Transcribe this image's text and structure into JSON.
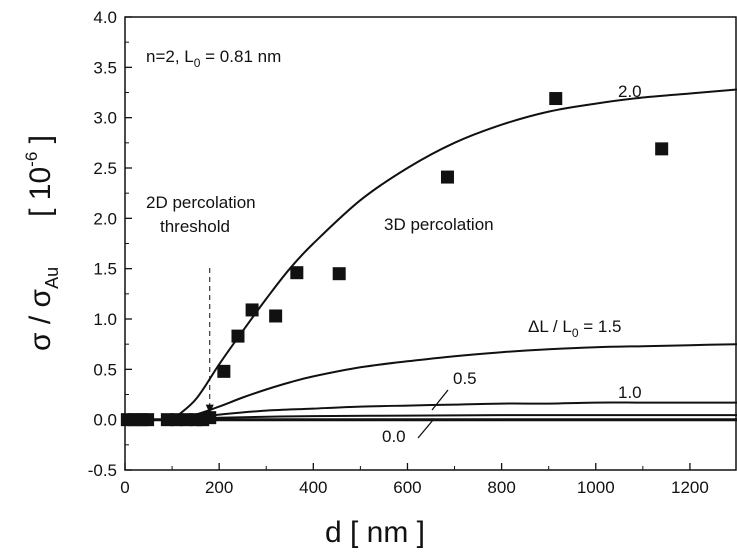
{
  "chart_data": {
    "type": "scatter",
    "xlabel": "d  [ nm ]",
    "ylabel": {
      "sigma": "σ / σ",
      "sub": "Au",
      "bracket_open": "[ 10",
      "exp": "-6",
      "bracket_close": " ]"
    },
    "xlim": [
      0,
      1300
    ],
    "ylim": [
      -0.5,
      4.0
    ],
    "xticks": [
      0,
      200,
      400,
      600,
      800,
      1000,
      1200
    ],
    "xtick_labels": [
      "0",
      "200",
      "400",
      "600",
      "800",
      "1000",
      "1200"
    ],
    "yticks": [
      -0.5,
      0.0,
      0.5,
      1.0,
      1.5,
      2.0,
      2.5,
      3.0,
      3.5,
      4.0
    ],
    "ytick_labels": [
      "-0.5",
      "0.0",
      "0.5",
      "1.0",
      "1.5",
      "2.0",
      "2.5",
      "3.0",
      "3.5",
      "4.0"
    ],
    "grid": false,
    "series": [
      {
        "marker": "square",
        "x": [
          5,
          20,
          35,
          48,
          90,
          110,
          130,
          150,
          165,
          180,
          210,
          240,
          270,
          320,
          365,
          455,
          685,
          915,
          1140
        ],
        "y": [
          0.0,
          0.0,
          0.0,
          0.0,
          0.0,
          0.0,
          0.0,
          0.0,
          0.0,
          0.02,
          0.48,
          0.83,
          1.09,
          1.03,
          1.46,
          1.45,
          2.41,
          3.19,
          2.69
        ]
      },
      {
        "label": "2.0",
        "line": true,
        "x": [
          100,
          150,
          200,
          250,
          300,
          350,
          400,
          500,
          600,
          700,
          800,
          900,
          1000,
          1100,
          1200,
          1300
        ],
        "y": [
          0.0,
          0.2,
          0.55,
          0.88,
          1.2,
          1.5,
          1.75,
          2.18,
          2.5,
          2.75,
          2.93,
          3.06,
          3.14,
          3.2,
          3.24,
          3.28
        ]
      },
      {
        "label": "ΔL / L₀ = 1.5",
        "line": true,
        "x": [
          100,
          150,
          200,
          250,
          300,
          350,
          400,
          500,
          600,
          700,
          800,
          900,
          1000,
          1100,
          1200,
          1300
        ],
        "y": [
          0.0,
          0.05,
          0.13,
          0.22,
          0.3,
          0.37,
          0.43,
          0.52,
          0.58,
          0.63,
          0.67,
          0.7,
          0.72,
          0.73,
          0.74,
          0.75
        ]
      },
      {
        "label": "1.0",
        "line": true,
        "x": [
          100,
          150,
          200,
          300,
          400,
          500,
          600,
          700,
          800,
          900,
          1000,
          1100,
          1200,
          1300
        ],
        "y": [
          0.0,
          0.02,
          0.05,
          0.09,
          0.11,
          0.13,
          0.14,
          0.15,
          0.16,
          0.16,
          0.17,
          0.17,
          0.17,
          0.17
        ]
      },
      {
        "label": "0.5",
        "line": true,
        "x": [
          100,
          200,
          400,
          600,
          800,
          1000,
          1300
        ],
        "y": [
          0.0,
          0.02,
          0.035,
          0.04,
          0.045,
          0.045,
          0.045
        ]
      },
      {
        "label": "0.0",
        "line": true,
        "x": [
          0,
          1300
        ],
        "y": [
          0.0,
          0.0
        ]
      }
    ],
    "annotations": {
      "params": {
        "prefix": "n=2,  L",
        "sub": "0",
        "suffix": " = 0.81 nm"
      },
      "threshold_line1": "2D percolation",
      "threshold_line2": "threshold",
      "threshold_x": 180,
      "percolation3d": "3D percolation",
      "curve_label_20": "2.0",
      "curve_label_15": {
        "prefix": "ΔL / L",
        "sub": "0",
        "suffix": " = 1.5"
      },
      "curve_label_10": "1.0",
      "curve_label_05": "0.5",
      "curve_label_00": "0.0"
    }
  },
  "colors": {
    "axis": "#111111",
    "line": "#111111",
    "marker": "#111111",
    "background": "#ffffff"
  }
}
